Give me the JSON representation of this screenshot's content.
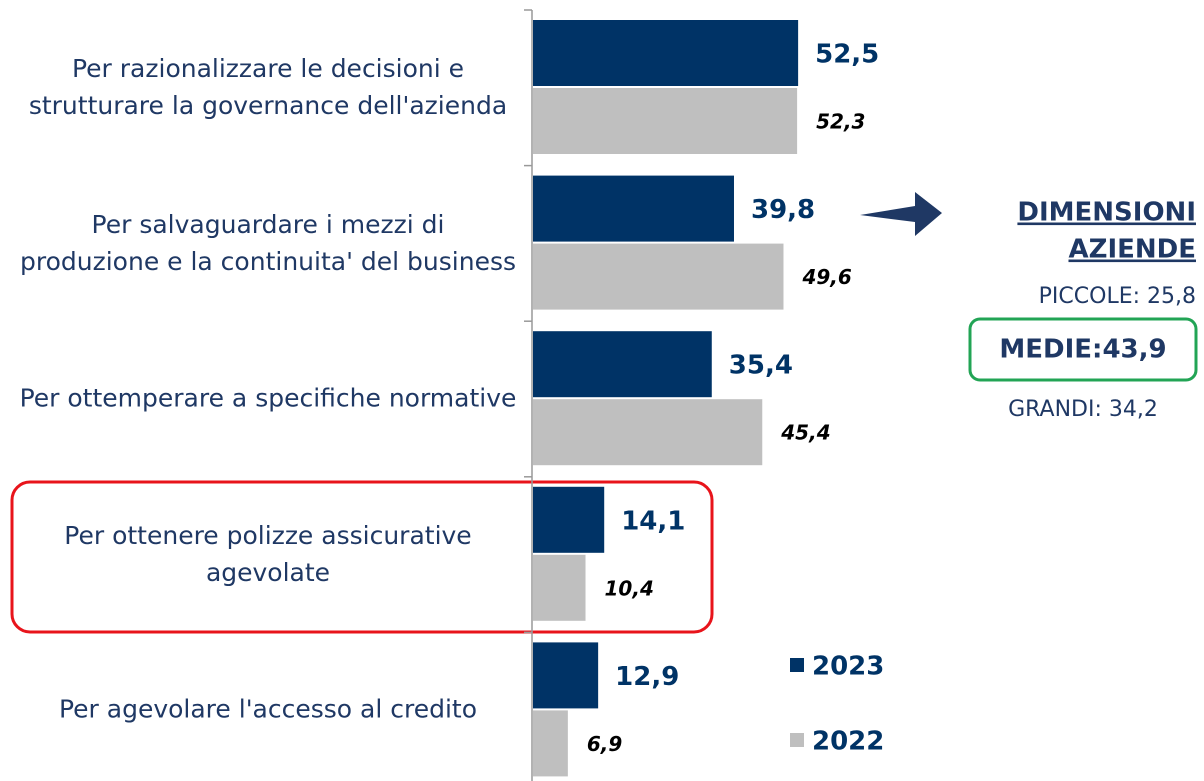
{
  "chart_data": {
    "type": "bar",
    "orientation": "horizontal",
    "categories": [
      "Per razionalizzare le decisioni e strutturare la governance dell'azienda",
      "Per salvaguardare i mezzi di produzione e la continuita' del business",
      "Per ottemperare a specifiche normative",
      "Per ottenere polizze assicurative agevolate",
      "Per agevolare l'accesso al credito"
    ],
    "series": [
      {
        "name": "2023",
        "color": "#003366",
        "values": [
          52.5,
          39.8,
          35.4,
          14.1,
          12.9
        ],
        "value_labels": [
          "52,5",
          "39,8",
          "35,4",
          "14,1",
          "12,9"
        ]
      },
      {
        "name": "2022",
        "color": "#bfbfbf",
        "values": [
          52.3,
          49.6,
          45.4,
          10.4,
          6.9
        ],
        "value_labels": [
          "52,3",
          "49,6",
          "45,4",
          "10,4",
          "6,9"
        ]
      }
    ],
    "size_panel": {
      "title": [
        "DIMENSIONI",
        "AZIENDE"
      ],
      "items": [
        "PICCOLE: 25,8",
        "MEDIE:43,9",
        "GRANDI: 34,2"
      ]
    }
  }
}
